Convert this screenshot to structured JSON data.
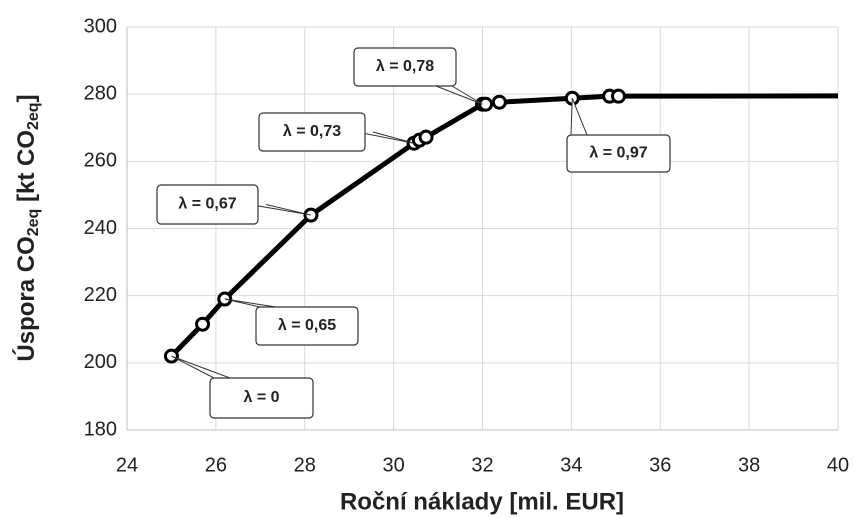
{
  "chart_data": {
    "type": "line",
    "xlabel": "Roční náklady [mil. EUR]",
    "ylabel": [
      "Úspora CO",
      "2eq",
      " [kt CO",
      "2eq",
      "]"
    ],
    "x": [
      25.0,
      25.7,
      26.2,
      28.14,
      30.46,
      30.58,
      30.73,
      32.0,
      32.07,
      32.38,
      34.02,
      34.86,
      35.06,
      40
    ],
    "series": [
      {
        "color": "#000000",
        "values": [
          202,
          211.5,
          219,
          244,
          265.4,
          266.3,
          267.2,
          277,
          277,
          277.6,
          278.8,
          279.4,
          279.4,
          279.5
        ]
      }
    ],
    "xlim": [
      24,
      40
    ],
    "xticks": [
      24,
      26,
      28,
      30,
      32,
      34,
      36,
      38,
      40
    ],
    "ylim": [
      180,
      300
    ],
    "yticks": [
      180,
      200,
      220,
      240,
      260,
      280,
      300
    ],
    "grid": true,
    "annotations": [
      {
        "text": "λ = 0"
      },
      {
        "text": "λ = 0,65"
      },
      {
        "text": "λ = 0,67"
      },
      {
        "text": "λ = 0,73"
      },
      {
        "text": "λ = 0,78"
      },
      {
        "text": "λ = 0,97"
      }
    ]
  }
}
